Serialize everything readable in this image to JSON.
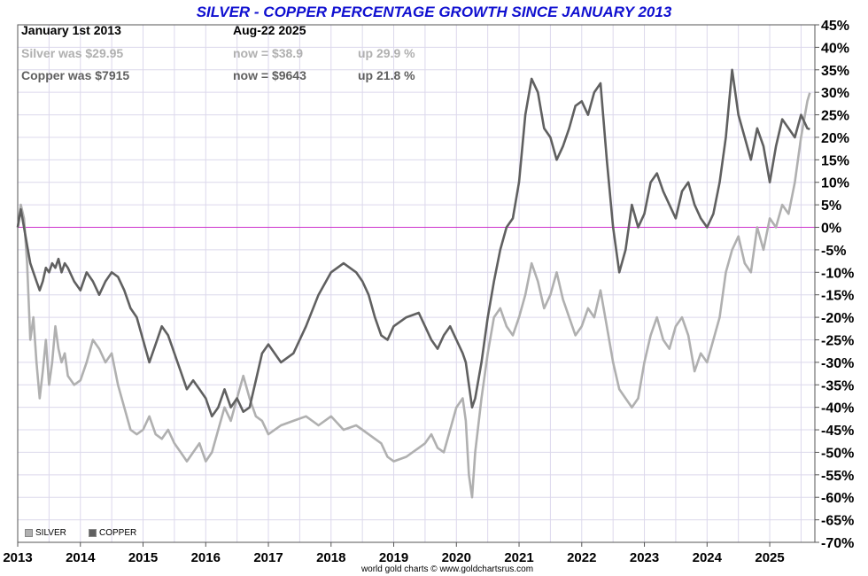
{
  "title": "SILVER - COPPER PERCENTAGE GROWTH SINCE JANUARY 2013",
  "info": {
    "start_label": "January 1st 2013",
    "end_label": "Aug-22  2025",
    "silver_was": "Silver was $29.95",
    "silver_now": "now = $38.9",
    "silver_up": "up 29.9 %",
    "copper_was": "Copper was $7915",
    "copper_now": "now = $9643",
    "copper_up": "up 21.8 %"
  },
  "credit": "world gold charts © www.goldchartsrus.com",
  "chart_data": {
    "type": "line",
    "title": "SILVER - COPPER PERCENTAGE GROWTH SINCE JANUARY 2013",
    "xlabel": "",
    "ylabel": "",
    "xlim": [
      2013.0,
      2025.72
    ],
    "ylim": [
      -70,
      45
    ],
    "grid": true,
    "legend_position": "bottom-left",
    "x_ticks": [
      "2013",
      "2014",
      "2015",
      "2016",
      "2017",
      "2018",
      "2019",
      "2020",
      "2021",
      "2022",
      "2023",
      "2024",
      "2025"
    ],
    "y_ticks": [
      45,
      40,
      35,
      30,
      25,
      20,
      15,
      10,
      5,
      0,
      -5,
      -10,
      -15,
      -20,
      -25,
      -30,
      -35,
      -40,
      -45,
      -50,
      -55,
      -60,
      -65,
      -70
    ],
    "y_tick_labels": [
      "45%",
      "40%",
      "35%",
      "30%",
      "25%",
      "20%",
      "15%",
      "10%",
      "5%",
      "0%",
      "-5%",
      "-10%",
      "-15%",
      "-20%",
      "-25%",
      "-30%",
      "-35%",
      "-40%",
      "-45%",
      "-50%",
      "-55%",
      "-60%",
      "-65%",
      "-70%"
    ],
    "reference_line": 0,
    "colors": {
      "silver": "#b0b0b0",
      "copper": "#606060",
      "zero_line": "#cc33cc",
      "grid": "#dcd8ec",
      "title": "#1010d0"
    },
    "series": [
      {
        "name": "SILVER",
        "x": [
          2013.0,
          2013.05,
          2013.1,
          2013.15,
          2013.2,
          2013.25,
          2013.3,
          2013.35,
          2013.4,
          2013.45,
          2013.5,
          2013.55,
          2013.6,
          2013.65,
          2013.7,
          2013.75,
          2013.8,
          2013.9,
          2014.0,
          2014.1,
          2014.2,
          2014.3,
          2014.4,
          2014.5,
          2014.6,
          2014.7,
          2014.8,
          2014.9,
          2015.0,
          2015.1,
          2015.2,
          2015.3,
          2015.4,
          2015.5,
          2015.6,
          2015.7,
          2015.8,
          2015.9,
          2016.0,
          2016.1,
          2016.2,
          2016.3,
          2016.4,
          2016.5,
          2016.6,
          2016.7,
          2016.8,
          2016.9,
          2017.0,
          2017.2,
          2017.4,
          2017.6,
          2017.8,
          2018.0,
          2018.2,
          2018.4,
          2018.5,
          2018.6,
          2018.7,
          2018.8,
          2018.9,
          2019.0,
          2019.2,
          2019.4,
          2019.5,
          2019.6,
          2019.7,
          2019.8,
          2019.9,
          2020.0,
          2020.1,
          2020.15,
          2020.2,
          2020.25,
          2020.3,
          2020.4,
          2020.5,
          2020.6,
          2020.7,
          2020.8,
          2020.9,
          2021.0,
          2021.1,
          2021.2,
          2021.3,
          2021.4,
          2021.5,
          2021.6,
          2021.7,
          2021.8,
          2021.9,
          2022.0,
          2022.1,
          2022.2,
          2022.3,
          2022.4,
          2022.5,
          2022.6,
          2022.7,
          2022.8,
          2022.9,
          2023.0,
          2023.1,
          2023.2,
          2023.3,
          2023.4,
          2023.5,
          2023.6,
          2023.7,
          2023.8,
          2023.9,
          2024.0,
          2024.1,
          2024.2,
          2024.3,
          2024.4,
          2024.5,
          2024.6,
          2024.7,
          2024.8,
          2024.9,
          2025.0,
          2025.1,
          2025.2,
          2025.3,
          2025.4,
          2025.5,
          2025.6,
          2025.64
        ],
        "y": [
          0,
          5,
          2,
          -8,
          -25,
          -20,
          -30,
          -38,
          -32,
          -25,
          -35,
          -30,
          -22,
          -27,
          -30,
          -28,
          -33,
          -35,
          -34,
          -30,
          -25,
          -27,
          -30,
          -28,
          -35,
          -40,
          -45,
          -46,
          -45,
          -42,
          -46,
          -47,
          -45,
          -48,
          -50,
          -52,
          -50,
          -48,
          -52,
          -50,
          -45,
          -40,
          -43,
          -38,
          -33,
          -38,
          -42,
          -43,
          -46,
          -44,
          -43,
          -42,
          -44,
          -42,
          -45,
          -44,
          -45,
          -46,
          -47,
          -48,
          -51,
          -52,
          -51,
          -49,
          -48,
          -46,
          -49,
          -50,
          -45,
          -40,
          -38,
          -43,
          -55,
          -60,
          -50,
          -38,
          -28,
          -20,
          -18,
          -22,
          -24,
          -20,
          -15,
          -8,
          -12,
          -18,
          -15,
          -10,
          -16,
          -20,
          -24,
          -22,
          -18,
          -20,
          -14,
          -22,
          -30,
          -36,
          -38,
          -40,
          -38,
          -30,
          -24,
          -20,
          -25,
          -27,
          -22,
          -20,
          -24,
          -32,
          -28,
          -30,
          -25,
          -20,
          -10,
          -5,
          -2,
          -8,
          -10,
          0,
          -5,
          2,
          0,
          5,
          3,
          10,
          20,
          28,
          29.9
        ]
      },
      {
        "name": "COPPER",
        "x": [
          2013.0,
          2013.05,
          2013.1,
          2013.15,
          2013.2,
          2013.25,
          2013.3,
          2013.35,
          2013.4,
          2013.45,
          2013.5,
          2013.55,
          2013.6,
          2013.65,
          2013.7,
          2013.75,
          2013.8,
          2013.9,
          2014.0,
          2014.1,
          2014.2,
          2014.3,
          2014.4,
          2014.5,
          2014.6,
          2014.7,
          2014.8,
          2014.9,
          2015.0,
          2015.1,
          2015.2,
          2015.3,
          2015.4,
          2015.5,
          2015.6,
          2015.7,
          2015.8,
          2015.9,
          2016.0,
          2016.1,
          2016.2,
          2016.3,
          2016.4,
          2016.5,
          2016.6,
          2016.7,
          2016.8,
          2016.9,
          2017.0,
          2017.2,
          2017.4,
          2017.6,
          2017.8,
          2018.0,
          2018.2,
          2018.4,
          2018.5,
          2018.6,
          2018.7,
          2018.8,
          2018.9,
          2019.0,
          2019.2,
          2019.4,
          2019.5,
          2019.6,
          2019.7,
          2019.8,
          2019.9,
          2020.0,
          2020.1,
          2020.15,
          2020.2,
          2020.25,
          2020.3,
          2020.4,
          2020.5,
          2020.6,
          2020.7,
          2020.8,
          2020.9,
          2021.0,
          2021.1,
          2021.2,
          2021.3,
          2021.4,
          2021.5,
          2021.6,
          2021.7,
          2021.8,
          2021.9,
          2022.0,
          2022.1,
          2022.2,
          2022.3,
          2022.4,
          2022.5,
          2022.6,
          2022.7,
          2022.8,
          2022.9,
          2023.0,
          2023.1,
          2023.2,
          2023.3,
          2023.4,
          2023.5,
          2023.6,
          2023.7,
          2023.8,
          2023.9,
          2024.0,
          2024.1,
          2024.2,
          2024.3,
          2024.4,
          2024.5,
          2024.6,
          2024.7,
          2024.8,
          2024.9,
          2025.0,
          2025.1,
          2025.2,
          2025.3,
          2025.4,
          2025.5,
          2025.6,
          2025.64
        ],
        "y": [
          0,
          4,
          0,
          -4,
          -8,
          -10,
          -12,
          -14,
          -12,
          -9,
          -10,
          -8,
          -9,
          -7,
          -10,
          -8,
          -9,
          -12,
          -14,
          -10,
          -12,
          -15,
          -12,
          -10,
          -11,
          -14,
          -18,
          -20,
          -25,
          -30,
          -26,
          -22,
          -24,
          -28,
          -32,
          -36,
          -34,
          -36,
          -38,
          -42,
          -40,
          -36,
          -40,
          -38,
          -41,
          -40,
          -34,
          -28,
          -26,
          -30,
          -28,
          -22,
          -15,
          -10,
          -8,
          -10,
          -12,
          -15,
          -20,
          -24,
          -25,
          -22,
          -20,
          -19,
          -22,
          -25,
          -27,
          -24,
          -22,
          -25,
          -28,
          -30,
          -35,
          -40,
          -38,
          -30,
          -20,
          -12,
          -5,
          0,
          2,
          10,
          25,
          33,
          30,
          22,
          20,
          15,
          18,
          22,
          27,
          28,
          25,
          30,
          32,
          15,
          0,
          -10,
          -5,
          5,
          0,
          3,
          10,
          12,
          8,
          5,
          2,
          8,
          10,
          5,
          2,
          0,
          3,
          10,
          20,
          35,
          25,
          20,
          15,
          22,
          18,
          10,
          18,
          24,
          22,
          20,
          25,
          22,
          21.8
        ]
      }
    ]
  }
}
